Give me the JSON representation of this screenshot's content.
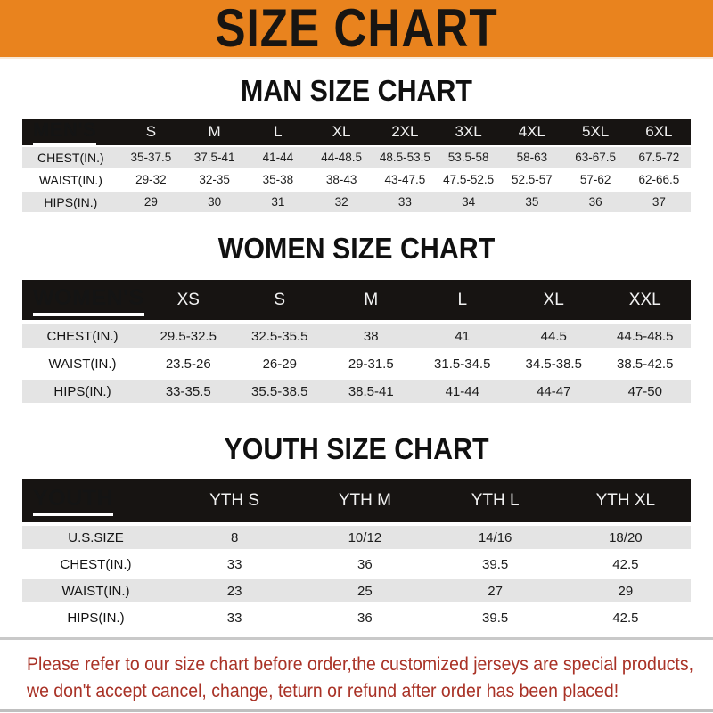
{
  "banner": {
    "title": "SIZE CHART"
  },
  "colors": {
    "orange": "#E9831E",
    "bar-black": "#171412",
    "row-gray": "#E4E4E4",
    "red": "#A93226"
  },
  "sections": [
    {
      "heading": "MAN SIZE CHART",
      "header_label": "MEN'S",
      "columns": [
        "S",
        "M",
        "L",
        "XL",
        "2XL",
        "3XL",
        "4XL",
        "5XL",
        "6XL"
      ],
      "rows": [
        {
          "label": "CHEST(IN.)",
          "values": [
            "35-37.5",
            "37.5-41",
            "41-44",
            "44-48.5",
            "48.5-53.5",
            "53.5-58",
            "58-63",
            "63-67.5",
            "67.5-72"
          ]
        },
        {
          "label": "WAIST(IN.)",
          "values": [
            "29-32",
            "32-35",
            "35-38",
            "38-43",
            "43-47.5",
            "47.5-52.5",
            "52.5-57",
            "57-62",
            "62-66.5"
          ]
        },
        {
          "label": "HIPS(IN.)",
          "values": [
            "29",
            "30",
            "31",
            "32",
            "33",
            "34",
            "35",
            "36",
            "37"
          ]
        }
      ]
    },
    {
      "heading": "WOMEN SIZE CHART",
      "header_label": "WOMEN'S",
      "columns": [
        "XS",
        "S",
        "M",
        "L",
        "XL",
        "XXL"
      ],
      "rows": [
        {
          "label": "CHEST(IN.)",
          "values": [
            "29.5-32.5",
            "32.5-35.5",
            "38",
            "41",
            "44.5",
            "44.5-48.5"
          ]
        },
        {
          "label": "WAIST(IN.)",
          "values": [
            "23.5-26",
            "26-29",
            "29-31.5",
            "31.5-34.5",
            "34.5-38.5",
            "38.5-42.5"
          ]
        },
        {
          "label": "HIPS(IN.)",
          "values": [
            "33-35.5",
            "35.5-38.5",
            "38.5-41",
            "41-44",
            "44-47",
            "47-50"
          ]
        }
      ]
    },
    {
      "heading": "YOUTH SIZE CHART",
      "header_label": "YOUTH",
      "columns": [
        "YTH S",
        "YTH M",
        "YTH L",
        "YTH XL"
      ],
      "rows": [
        {
          "label": "U.S.SIZE",
          "values": [
            "8",
            "10/12",
            "14/16",
            "18/20"
          ]
        },
        {
          "label": "CHEST(IN.)",
          "values": [
            "33",
            "36",
            "39.5",
            "42.5"
          ]
        },
        {
          "label": "WAIST(IN.)",
          "values": [
            "23",
            "25",
            "27",
            "29"
          ]
        },
        {
          "label": "HIPS(IN.)",
          "values": [
            "33",
            "36",
            "39.5",
            "42.5"
          ]
        }
      ]
    }
  ],
  "footer": {
    "lines": [
      "Please refer to our size chart before order,the customized jerseys are special products,",
      "we don't accept cancel, change, teturn or refund after order has been placed!"
    ]
  }
}
